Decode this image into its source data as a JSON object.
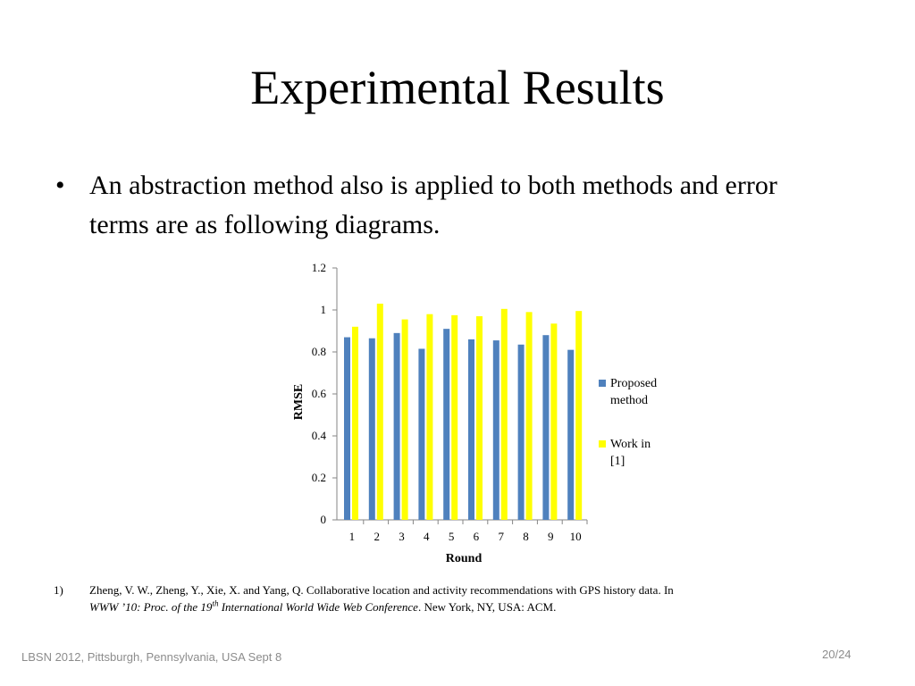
{
  "slide": {
    "title": "Experimental Results",
    "bullet": "An abstraction method also is applied to both methods and error terms are as following diagrams.",
    "bullet_glyph": "•"
  },
  "chart_data": {
    "type": "bar",
    "categories": [
      "1",
      "2",
      "3",
      "4",
      "5",
      "6",
      "7",
      "8",
      "9",
      "10"
    ],
    "series": [
      {
        "name": "Proposed method",
        "color": "#4f81bd",
        "values": [
          0.87,
          0.865,
          0.89,
          0.815,
          0.91,
          0.86,
          0.855,
          0.835,
          0.88,
          0.81
        ]
      },
      {
        "name": "Work in [1]",
        "color": "#ffff00",
        "values": [
          0.92,
          1.03,
          0.955,
          0.98,
          0.975,
          0.97,
          1.005,
          0.99,
          0.935,
          0.995
        ]
      }
    ],
    "xlabel": "Round",
    "ylabel": "RMSE",
    "ylim": [
      0,
      1.2
    ],
    "yticks": [
      "0",
      "0.2",
      "0.4",
      "0.6",
      "0.8",
      "1",
      "1.2"
    ],
    "grid": false,
    "legend": "right",
    "legend_lines": [
      [
        "Proposed",
        "method"
      ],
      [
        "Work in",
        "[1]"
      ]
    ]
  },
  "footnote": {
    "number": "1)",
    "line1": "Zheng, V. W., Zheng, Y., Xie, X. and Yang, Q. Collaborative location and activity recommendations with GPS history data. In",
    "line2_italic_a": "WWW ’10: Proc. of the 19",
    "line2_sup": "th",
    "line2_italic_b": " International World Wide Web Conference",
    "line2_rest": ". New York, NY, USA: ACM."
  },
  "footer": {
    "left": "LBSN 2012, Pittsburgh, Pennsylvania, USA  Sept 8",
    "right": "20/24"
  }
}
